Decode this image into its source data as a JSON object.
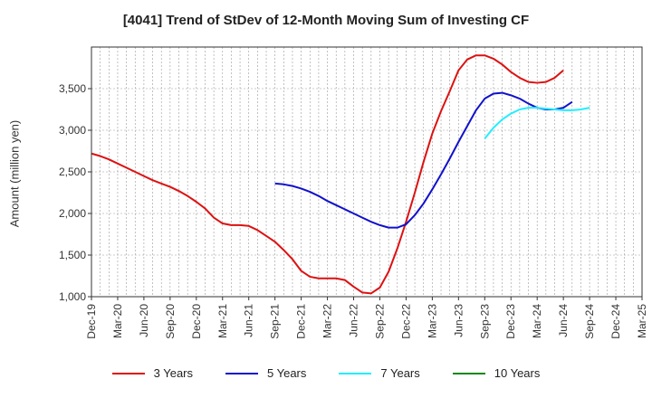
{
  "chart_data": {
    "type": "line",
    "title": "[4041]  Trend of StDev of 12-Month Moving Sum of Investing CF",
    "xlabel": "",
    "ylabel": "Amount (million yen)",
    "ylim": [
      1000,
      4000
    ],
    "yticks": [
      1000,
      1500,
      2000,
      2500,
      3000,
      3500
    ],
    "ytick_labels": [
      "1,000",
      "1,500",
      "2,000",
      "2,500",
      "3,000",
      "3,500"
    ],
    "xtick_labels": [
      "Dec-19",
      "Mar-20",
      "Jun-20",
      "Sep-20",
      "Dec-20",
      "Mar-21",
      "Jun-21",
      "Sep-21",
      "Dec-21",
      "Mar-22",
      "Jun-22",
      "Sep-22",
      "Dec-22",
      "Mar-23",
      "Jun-23",
      "Sep-23",
      "Dec-23",
      "Mar-24",
      "Jun-24",
      "Sep-24",
      "Dec-24",
      "Mar-25"
    ],
    "x_start": "Dec-19",
    "series": [
      {
        "name": "3 Years",
        "color": "#dd1111",
        "start_index": 0,
        "values": [
          2720,
          2690,
          2650,
          2600,
          2550,
          2500,
          2450,
          2400,
          2360,
          2320,
          2270,
          2210,
          2140,
          2060,
          1950,
          1880,
          1860,
          1860,
          1850,
          1800,
          1730,
          1660,
          1560,
          1450,
          1310,
          1240,
          1220,
          1220,
          1220,
          1200,
          1120,
          1050,
          1040,
          1110,
          1300,
          1580,
          1900,
          2250,
          2620,
          2960,
          3230,
          3470,
          3720,
          3850,
          3900,
          3900,
          3860,
          3790,
          3700,
          3630,
          3580,
          3570,
          3580,
          3630,
          3720
        ]
      },
      {
        "name": "5 Years",
        "color": "#1111cc",
        "start_index": 21,
        "values": [
          2360,
          2350,
          2330,
          2300,
          2260,
          2210,
          2150,
          2100,
          2050,
          2000,
          1950,
          1900,
          1860,
          1830,
          1830,
          1870,
          1980,
          2120,
          2290,
          2470,
          2660,
          2860,
          3050,
          3240,
          3380,
          3440,
          3450,
          3420,
          3380,
          3320,
          3270,
          3250,
          3250,
          3270,
          3340
        ]
      },
      {
        "name": "7 Years",
        "color": "#22eeff",
        "start_index": 45,
        "values": [
          2900,
          3030,
          3130,
          3200,
          3250,
          3270,
          3270,
          3260,
          3250,
          3240,
          3240,
          3250,
          3270
        ]
      },
      {
        "name": "10 Years",
        "color": "#118811",
        "start_index": 0,
        "values": []
      }
    ]
  }
}
